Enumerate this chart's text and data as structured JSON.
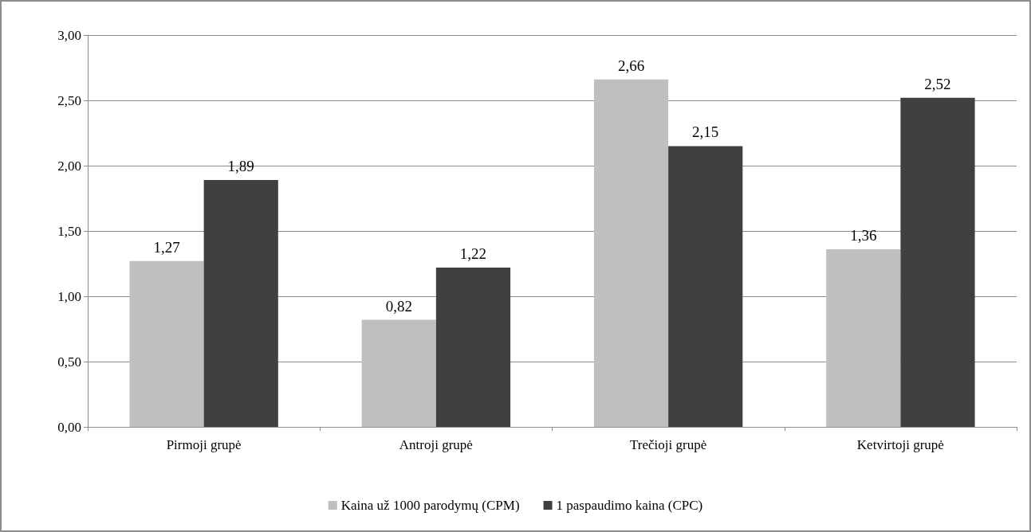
{
  "chart_data": {
    "type": "bar",
    "categories": [
      "Pirmoji grupė",
      "Antroji grupė",
      "Trečioji grupė",
      "Ketvirtoji grupė"
    ],
    "series": [
      {
        "name": "Kaina už 1000 parodymų (CPM)",
        "color": "#bfbfbf",
        "values": [
          1.27,
          0.82,
          2.66,
          1.36
        ],
        "value_labels": [
          "1,27",
          "0,82",
          "2,66",
          "1,36"
        ]
      },
      {
        "name": "1 paspaudimo kaina (CPC)",
        "color": "#404040",
        "values": [
          1.89,
          1.22,
          2.15,
          2.52
        ],
        "value_labels": [
          "1,89",
          "1,22",
          "2,15",
          "2,52"
        ]
      }
    ],
    "ylim": [
      0,
      3
    ],
    "yticks": [
      {
        "value": 0,
        "label": "0,00"
      },
      {
        "value": 0.5,
        "label": "0,50"
      },
      {
        "value": 1,
        "label": "1,00"
      },
      {
        "value": 1.5,
        "label": "1,50"
      },
      {
        "value": 2,
        "label": "2,00"
      },
      {
        "value": 2.5,
        "label": "2,50"
      },
      {
        "value": 3,
        "label": "3,00"
      }
    ],
    "grid": "y",
    "legend": "bottom"
  }
}
